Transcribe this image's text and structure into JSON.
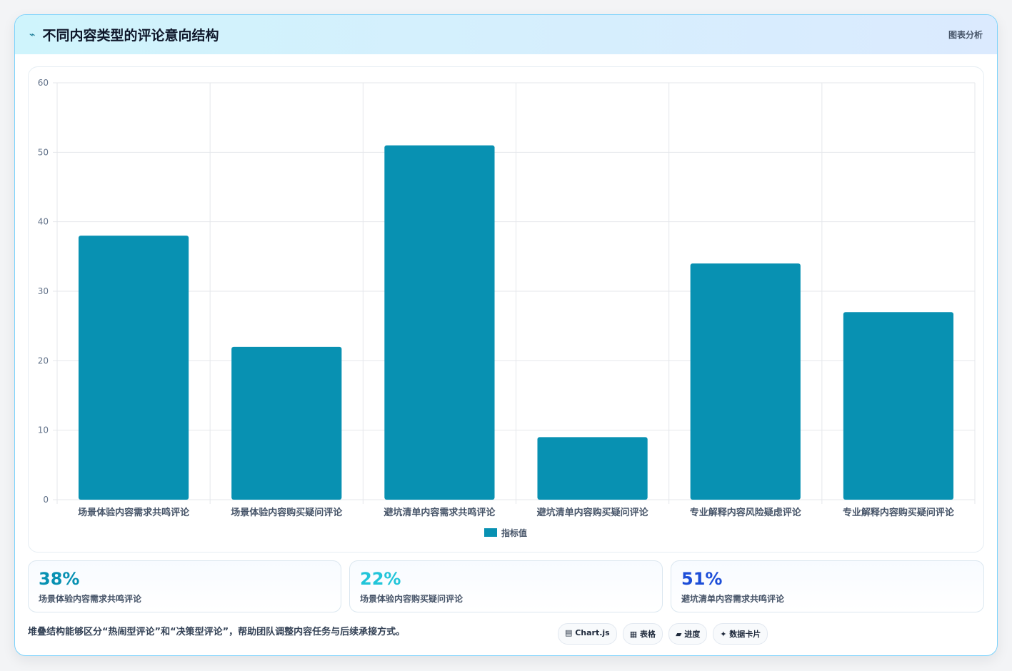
{
  "header": {
    "icon": "trend-icon",
    "title": "不同内容类型的评论意向结构",
    "tag": "图表分析"
  },
  "chart_data": {
    "type": "bar",
    "categories": [
      "场景体验内容需求共鸣评论",
      "场景体验内容购买疑问评论",
      "避坑清单内容需求共鸣评论",
      "避坑清单内容购买疑问评论",
      "专业解释内容风险疑虑评论",
      "专业解释内容购买疑问评论"
    ],
    "series": [
      {
        "name": "指标值",
        "values": [
          38,
          22,
          51,
          9,
          34,
          27
        ]
      }
    ],
    "ylim": [
      0,
      60
    ],
    "yticks": [
      0,
      10,
      20,
      30,
      40,
      50,
      60
    ],
    "grid": true,
    "legend": "bottom",
    "color": "#0891b2"
  },
  "stats": [
    {
      "value": "38%",
      "label": "场景体验内容需求共鸣评论",
      "color": "#0891b2"
    },
    {
      "value": "22%",
      "label": "场景体验内容购买疑问评论",
      "color": "#22c5d9"
    },
    {
      "value": "51%",
      "label": "避坑清单内容需求共鸣评论",
      "color": "#1d4ed8"
    }
  ],
  "footer": {
    "note": "堆叠结构能够区分“热闹型评论”和“决策型评论”，帮助团队调整内容任务与后续承接方式。",
    "chips": [
      "▤ Chart.js",
      "▦ 表格",
      "▰ 进度",
      "✦ 数据卡片"
    ]
  }
}
